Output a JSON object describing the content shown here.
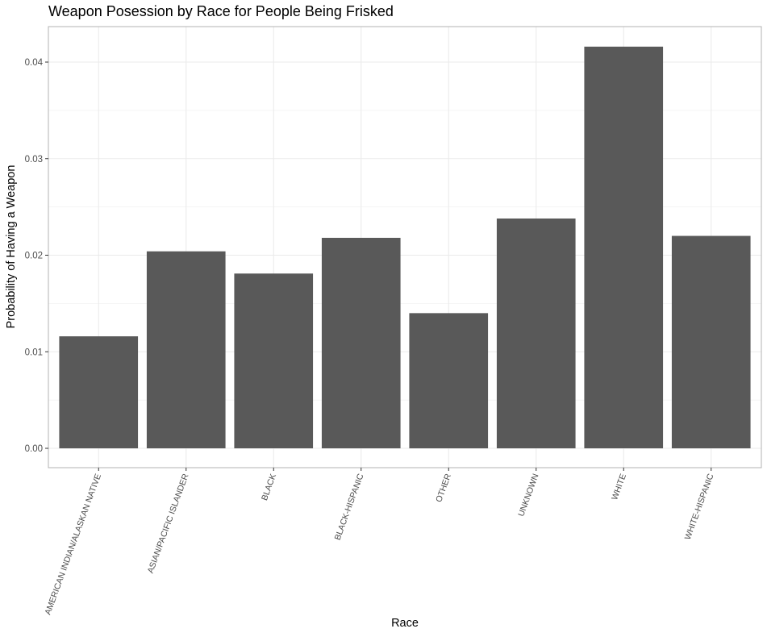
{
  "chart_data": {
    "type": "bar",
    "title": "Weapon Posession by Race for People Being Frisked",
    "xlabel": "Race",
    "ylabel": "Probability of Having a Weapon",
    "categories": [
      "AMERICAN INDIAN/ALASKAN NATIVE",
      "ASIAN/PACIFIC ISLANDER",
      "BLACK",
      "BLACK-HISPANIC",
      "OTHER",
      "UNKNOWN",
      "WHITE",
      "WHITE-HISPANIC"
    ],
    "values": [
      0.0116,
      0.0204,
      0.0181,
      0.0218,
      0.014,
      0.0238,
      0.0416,
      0.022
    ],
    "ylim": [
      0,
      0.04545
    ],
    "yticks": [
      0.0,
      0.01,
      0.02,
      0.03,
      0.04
    ],
    "ytick_labels": [
      "0.00",
      "0.01",
      "0.02",
      "0.03",
      "0.04"
    ],
    "grid": true,
    "bar_color": "#595959",
    "grid_color": "#ebebeb",
    "panel_border_color": "#b3b3b3"
  }
}
